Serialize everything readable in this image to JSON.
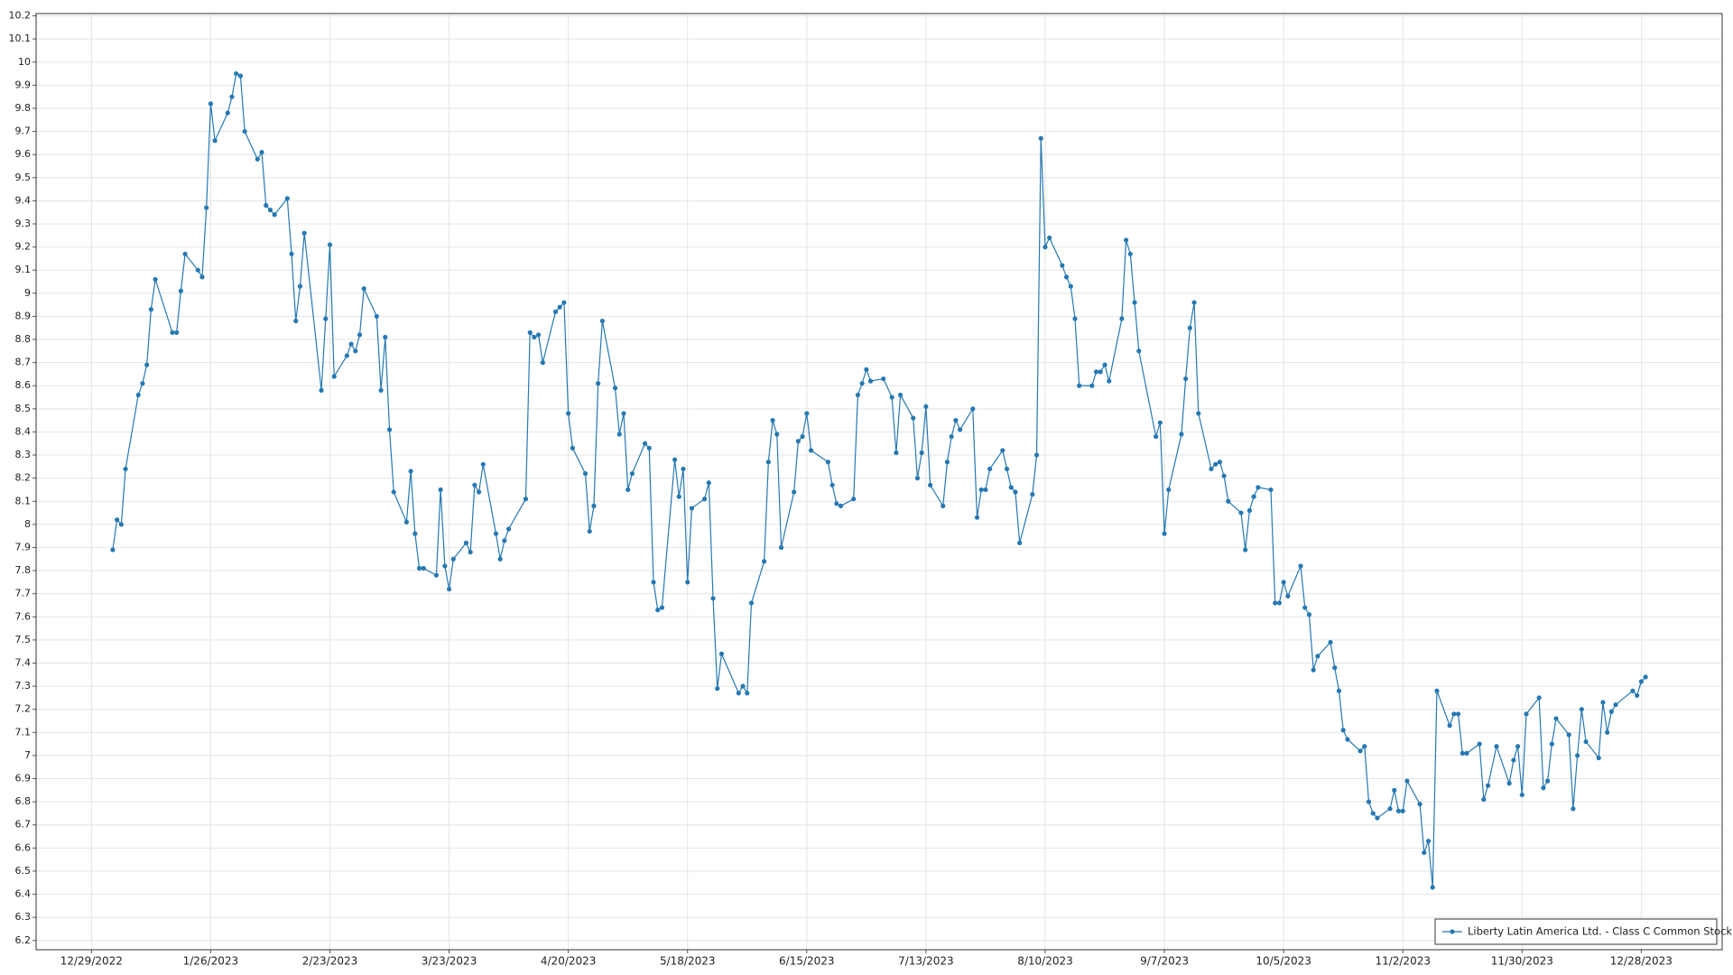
{
  "chart_data": {
    "type": "line",
    "x": [
      "1/3/2023",
      "1/4/2023",
      "1/5/2023",
      "1/6/2023",
      "1/9/2023",
      "1/10/2023",
      "1/11/2023",
      "1/12/2023",
      "1/13/2023",
      "1/17/2023",
      "1/18/2023",
      "1/19/2023",
      "1/20/2023",
      "1/23/2023",
      "1/24/2023",
      "1/25/2023",
      "1/26/2023",
      "1/27/2023",
      "1/30/2023",
      "1/31/2023",
      "2/1/2023",
      "2/2/2023",
      "2/3/2023",
      "2/6/2023",
      "2/7/2023",
      "2/8/2023",
      "2/9/2023",
      "2/10/2023",
      "2/13/2023",
      "2/14/2023",
      "2/15/2023",
      "2/16/2023",
      "2/17/2023",
      "2/21/2023",
      "2/22/2023",
      "2/23/2023",
      "2/24/2023",
      "2/27/2023",
      "2/28/2023",
      "3/1/2023",
      "3/2/2023",
      "3/3/2023",
      "3/6/2023",
      "3/7/2023",
      "3/8/2023",
      "3/9/2023",
      "3/10/2023",
      "3/13/2023",
      "3/14/2023",
      "3/15/2023",
      "3/16/2023",
      "3/17/2023",
      "3/20/2023",
      "3/21/2023",
      "3/22/2023",
      "3/23/2023",
      "3/24/2023",
      "3/27/2023",
      "3/28/2023",
      "3/29/2023",
      "3/30/2023",
      "3/31/2023",
      "4/3/2023",
      "4/4/2023",
      "4/5/2023",
      "4/6/2023",
      "4/10/2023",
      "4/11/2023",
      "4/12/2023",
      "4/13/2023",
      "4/14/2023",
      "4/17/2023",
      "4/18/2023",
      "4/19/2023",
      "4/20/2023",
      "4/21/2023",
      "4/24/2023",
      "4/25/2023",
      "4/26/2023",
      "4/27/2023",
      "4/28/2023",
      "5/1/2023",
      "5/2/2023",
      "5/3/2023",
      "5/4/2023",
      "5/5/2023",
      "5/8/2023",
      "5/9/2023",
      "5/10/2023",
      "5/11/2023",
      "5/12/2023",
      "5/15/2023",
      "5/16/2023",
      "5/17/2023",
      "5/18/2023",
      "5/19/2023",
      "5/22/2023",
      "5/23/2023",
      "5/24/2023",
      "5/25/2023",
      "5/26/2023",
      "5/30/2023",
      "5/31/2023",
      "6/1/2023",
      "6/2/2023",
      "6/5/2023",
      "6/6/2023",
      "6/7/2023",
      "6/8/2023",
      "6/9/2023",
      "6/12/2023",
      "6/13/2023",
      "6/14/2023",
      "6/15/2023",
      "6/16/2023",
      "6/20/2023",
      "6/21/2023",
      "6/22/2023",
      "6/23/2023",
      "6/26/2023",
      "6/27/2023",
      "6/28/2023",
      "6/29/2023",
      "6/30/2023",
      "7/3/2023",
      "7/5/2023",
      "7/6/2023",
      "7/7/2023",
      "7/10/2023",
      "7/11/2023",
      "7/12/2023",
      "7/13/2023",
      "7/14/2023",
      "7/17/2023",
      "7/18/2023",
      "7/19/2023",
      "7/20/2023",
      "7/21/2023",
      "7/24/2023",
      "7/25/2023",
      "7/26/2023",
      "7/27/2023",
      "7/28/2023",
      "7/31/2023",
      "8/1/2023",
      "8/2/2023",
      "8/3/2023",
      "8/4/2023",
      "8/7/2023",
      "8/8/2023",
      "8/9/2023",
      "8/10/2023",
      "8/11/2023",
      "8/14/2023",
      "8/15/2023",
      "8/16/2023",
      "8/17/2023",
      "8/18/2023",
      "8/21/2023",
      "8/22/2023",
      "8/23/2023",
      "8/24/2023",
      "8/25/2023",
      "8/28/2023",
      "8/29/2023",
      "8/30/2023",
      "8/31/2023",
      "9/1/2023",
      "9/5/2023",
      "9/6/2023",
      "9/7/2023",
      "9/8/2023",
      "9/11/2023",
      "9/12/2023",
      "9/13/2023",
      "9/14/2023",
      "9/15/2023",
      "9/18/2023",
      "9/19/2023",
      "9/20/2023",
      "9/21/2023",
      "9/22/2023",
      "9/25/2023",
      "9/26/2023",
      "9/27/2023",
      "9/28/2023",
      "9/29/2023",
      "10/2/2023",
      "10/3/2023",
      "10/4/2023",
      "10/5/2023",
      "10/6/2023",
      "10/9/2023",
      "10/10/2023",
      "10/11/2023",
      "10/12/2023",
      "10/13/2023",
      "10/16/2023",
      "10/17/2023",
      "10/18/2023",
      "10/19/2023",
      "10/20/2023",
      "10/23/2023",
      "10/24/2023",
      "10/25/2023",
      "10/26/2023",
      "10/27/2023",
      "10/30/2023",
      "10/31/2023",
      "11/1/2023",
      "11/2/2023",
      "11/3/2023",
      "11/6/2023",
      "11/7/2023",
      "11/8/2023",
      "11/9/2023",
      "11/10/2023",
      "11/13/2023",
      "11/14/2023",
      "11/15/2023",
      "11/16/2023",
      "11/17/2023",
      "11/20/2023",
      "11/21/2023",
      "11/22/2023",
      "11/24/2023",
      "11/27/2023",
      "11/28/2023",
      "11/29/2023",
      "11/30/2023",
      "12/1/2023",
      "12/4/2023",
      "12/5/2023",
      "12/6/2023",
      "12/7/2023",
      "12/8/2023",
      "12/11/2023",
      "12/12/2023",
      "12/13/2023",
      "12/14/2023",
      "12/15/2023",
      "12/18/2023",
      "12/19/2023",
      "12/20/2023",
      "12/21/2023",
      "12/22/2023",
      "12/26/2023",
      "12/27/2023",
      "12/28/2023",
      "12/29/2023"
    ],
    "series": [
      {
        "name": "Liberty Latin America Ltd. - Class C Common Stock",
        "color": "#2678b2",
        "values": [
          7.89,
          8.02,
          8.0,
          8.24,
          8.56,
          8.61,
          8.69,
          8.93,
          9.06,
          8.83,
          8.83,
          9.01,
          9.17,
          9.1,
          9.07,
          9.37,
          9.82,
          9.66,
          9.78,
          9.85,
          9.95,
          9.94,
          9.7,
          9.58,
          9.61,
          9.38,
          9.36,
          9.34,
          9.41,
          9.17,
          8.88,
          9.03,
          9.26,
          8.58,
          8.89,
          9.21,
          8.64,
          8.73,
          8.78,
          8.75,
          8.82,
          9.02,
          8.9,
          8.58,
          8.81,
          8.41,
          8.14,
          8.01,
          8.23,
          7.96,
          7.81,
          7.81,
          7.78,
          8.15,
          7.82,
          7.72,
          7.85,
          7.92,
          7.88,
          8.17,
          8.14,
          8.26,
          7.96,
          7.85,
          7.93,
          7.98,
          8.11,
          8.83,
          8.81,
          8.82,
          8.7,
          8.92,
          8.94,
          8.96,
          8.48,
          8.33,
          8.22,
          7.97,
          8.08,
          8.61,
          8.88,
          8.59,
          8.39,
          8.48,
          8.15,
          8.22,
          8.35,
          8.33,
          7.75,
          7.63,
          7.64,
          8.28,
          8.12,
          8.24,
          7.75,
          8.07,
          8.11,
          8.18,
          7.68,
          7.29,
          7.44,
          7.27,
          7.3,
          7.27,
          7.66,
          7.84,
          8.27,
          8.45,
          8.39,
          7.9,
          8.14,
          8.36,
          8.38,
          8.48,
          8.32,
          8.27,
          8.17,
          8.09,
          8.08,
          8.11,
          8.56,
          8.61,
          8.67,
          8.62,
          8.63,
          8.55,
          8.31,
          8.56,
          8.46,
          8.2,
          8.31,
          8.51,
          8.17,
          8.08,
          8.27,
          8.38,
          8.45,
          8.41,
          8.5,
          8.03,
          8.15,
          8.15,
          8.24,
          8.32,
          8.24,
          8.16,
          8.14,
          7.92,
          8.13,
          8.3,
          9.67,
          9.2,
          9.24,
          9.12,
          9.07,
          9.03,
          8.89,
          8.6,
          8.6,
          8.66,
          8.66,
          8.69,
          8.62,
          8.89,
          9.23,
          9.17,
          8.96,
          8.75,
          8.38,
          8.44,
          7.96,
          8.15,
          8.39,
          8.63,
          8.85,
          8.96,
          8.48,
          8.24,
          8.26,
          8.27,
          8.21,
          8.1,
          8.05,
          7.89,
          8.06,
          8.12,
          8.16,
          8.15,
          7.66,
          7.66,
          7.75,
          7.69,
          7.82,
          7.64,
          7.61,
          7.37,
          7.43,
          7.49,
          7.38,
          7.28,
          7.11,
          7.07,
          7.02,
          7.04,
          6.8,
          6.75,
          6.73,
          6.77,
          6.85,
          6.76,
          6.76,
          6.89,
          6.79,
          6.58,
          6.63,
          6.43,
          7.28,
          7.13,
          7.18,
          7.18,
          7.01,
          7.01,
          7.05,
          6.81,
          6.87,
          7.04,
          6.88,
          6.98,
          7.04,
          6.83,
          7.18,
          7.25,
          6.86,
          6.89,
          7.05,
          7.16,
          7.09,
          6.77,
          7.0,
          7.2,
          7.06,
          6.99,
          7.23,
          7.1,
          7.19,
          7.22,
          7.28,
          7.26,
          7.32,
          7.34
        ]
      }
    ],
    "xlim": [
      "12/16/2022",
      "1/16/2024"
    ],
    "xticks": [
      "12/29/2022",
      "1/26/2023",
      "2/23/2023",
      "3/23/2023",
      "4/20/2023",
      "5/18/2023",
      "6/15/2023",
      "7/13/2023",
      "8/10/2023",
      "9/7/2023",
      "10/5/2023",
      "11/2/2023",
      "11/30/2023",
      "12/28/2023"
    ],
    "ylim": [
      6.16,
      10.21
    ],
    "yticks": [
      6.2,
      6.3,
      6.4,
      6.5,
      6.6,
      6.7,
      6.8,
      6.9,
      7,
      7.1,
      7.2,
      7.3,
      7.4,
      7.5,
      7.6,
      7.7,
      7.8,
      7.9,
      8,
      8.1,
      8.2,
      8.3,
      8.4,
      8.5,
      8.6,
      8.7,
      8.8,
      8.9,
      9,
      9.1,
      9.2,
      9.3,
      9.4,
      9.5,
      9.6,
      9.7,
      9.8,
      9.9,
      10,
      10.1,
      10.2
    ],
    "grid": true,
    "markers": true,
    "legend": "lower right"
  }
}
